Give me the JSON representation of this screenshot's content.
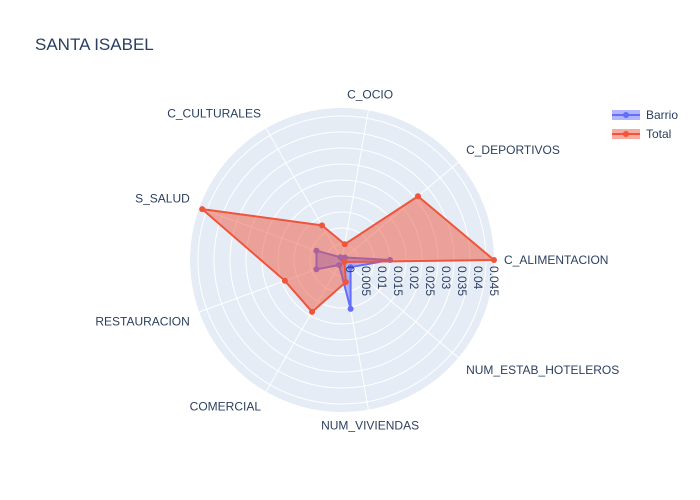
{
  "chart_data": {
    "type": "radar",
    "title": "SANTA ISABEL",
    "categories": [
      "C_ALIMENTACION",
      "C_DEPORTIVOS",
      "C_OCIO",
      "C_CULTURALES",
      "S_SALUD",
      "RESTAURACION",
      "COMERCIAL",
      "NUM_VIVIENDAS",
      "NUM_ESTAB_HOTELEROS"
    ],
    "radial_ticks": [
      "0",
      "0.005",
      "0.01",
      "0.015",
      "0.02",
      "0.025",
      "0.03",
      "0.035",
      "0.04",
      "0.045"
    ],
    "radial_range": [
      0,
      0.0475
    ],
    "series": [
      {
        "name": "Barrio",
        "color": "#636efa",
        "values": [
          0.015,
          0.0012,
          0.0004,
          0.001,
          0.0085,
          0.0085,
          0.0018,
          0.0155,
          0.0035
        ]
      },
      {
        "name": "Total",
        "color": "#ef553b",
        "values": [
          0.0475,
          0.031,
          0.005,
          0.0125,
          0.0465,
          0.019,
          0.0187,
          0.007,
          0.001
        ]
      }
    ],
    "legend_position": "top-right",
    "grid": true
  }
}
